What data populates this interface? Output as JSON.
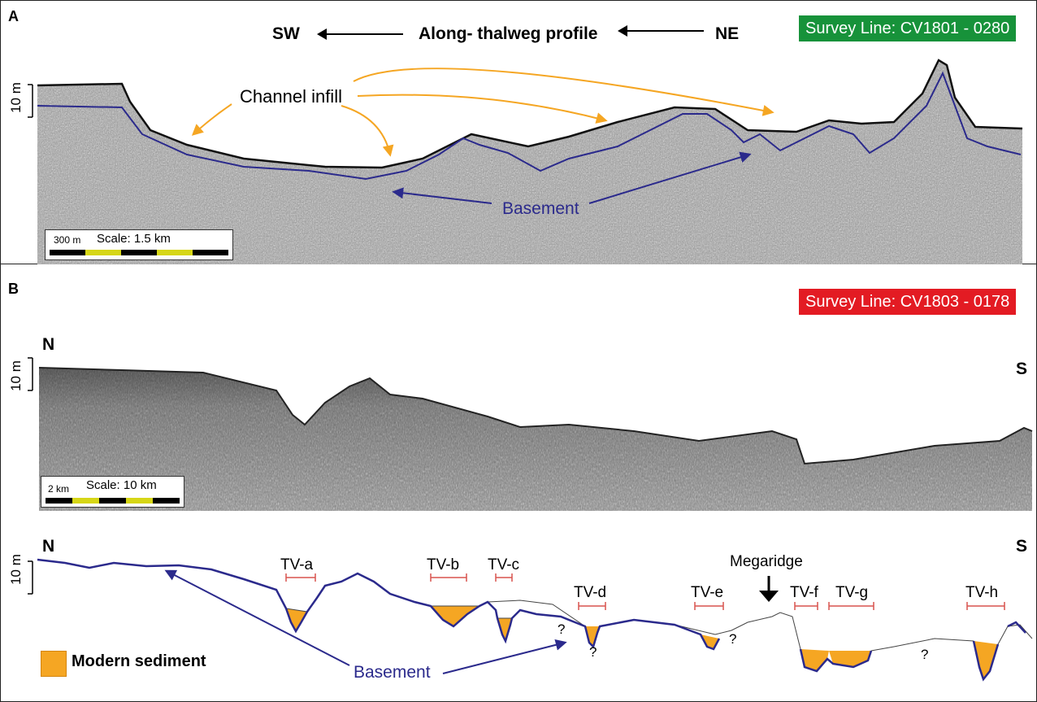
{
  "panel_a": {
    "label": "A",
    "direction_left": "SW",
    "direction_title": "Along- thalweg profile",
    "direction_right": "NE",
    "survey_line": "Survey Line: CV1801 - 0280",
    "survey_color": "#17923a",
    "vertical_scale": "10 m",
    "annotation_infill": "Channel infill",
    "annotation_basement": "Basement",
    "scalebar_unit": "300 m",
    "scalebar_label": "Scale: 1.5 km"
  },
  "panel_b": {
    "label": "B",
    "survey_line": "Survey Line: CV1803 - 0178",
    "survey_color": "#e31b23",
    "north": "N",
    "south": "S",
    "vertical_scale": "10 m",
    "scalebar_unit": "2 km",
    "scalebar_label": "Scale: 10 km"
  },
  "interpretation": {
    "north": "N",
    "south": "S",
    "vertical_scale": "10 m",
    "megaridge": "Megaridge",
    "basement": "Basement",
    "unknown_mark": "?",
    "valleys": [
      "TV-a",
      "TV-b",
      "TV-c",
      "TV-d",
      "TV-e",
      "TV-f",
      "TV-g",
      "TV-h"
    ],
    "legend_label": "Modern sediment",
    "colors": {
      "basement": "#2b2a8c",
      "sediment": "#f5a623",
      "arrow_infill": "#f5a623",
      "valley_bracket": "#d9534f"
    }
  }
}
